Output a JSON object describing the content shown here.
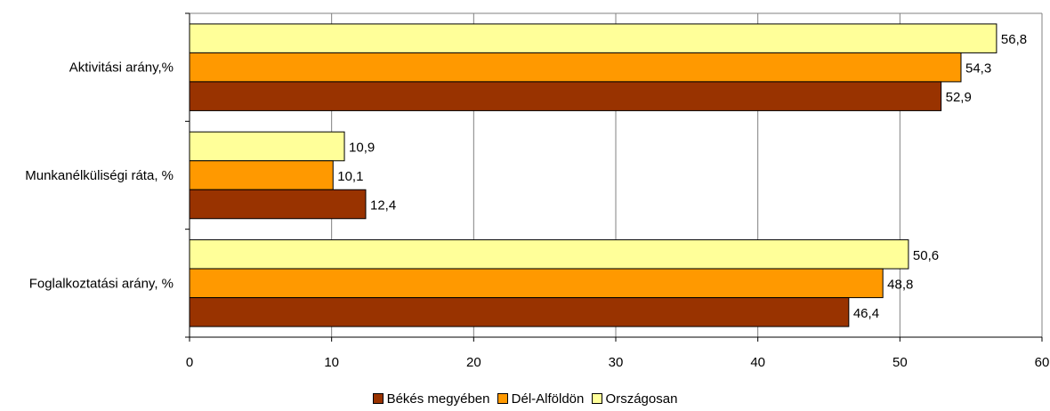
{
  "chart_data": {
    "type": "bar",
    "orientation": "horizontal",
    "categories": [
      "Aktivitási arány,%",
      "Munkanélküliségi ráta, %",
      "Foglalkoztatási arány, %"
    ],
    "series": [
      {
        "name": "Országosan",
        "values": [
          56.8,
          10.9,
          50.6
        ],
        "color": "#FFFF99",
        "labels": [
          "56,8",
          "10,9",
          "50,6"
        ]
      },
      {
        "name": "Dél-Alföldön",
        "values": [
          54.3,
          10.1,
          48.8
        ],
        "color": "#FF9900",
        "labels": [
          "54,3",
          "10,1",
          "48,8"
        ]
      },
      {
        "name": "Békés megyében",
        "values": [
          52.9,
          12.4,
          46.4
        ],
        "color": "#993300",
        "labels": [
          "52,9",
          "12,4",
          "46,4"
        ]
      }
    ],
    "xlim": [
      0,
      60
    ],
    "ticks": [
      "0",
      "10",
      "20",
      "30",
      "40",
      "50",
      "60"
    ],
    "grid": true,
    "legend_position": "bottom",
    "legend_order": [
      "Békés megyében",
      "Dél-Alföldön",
      "Országosan"
    ]
  }
}
